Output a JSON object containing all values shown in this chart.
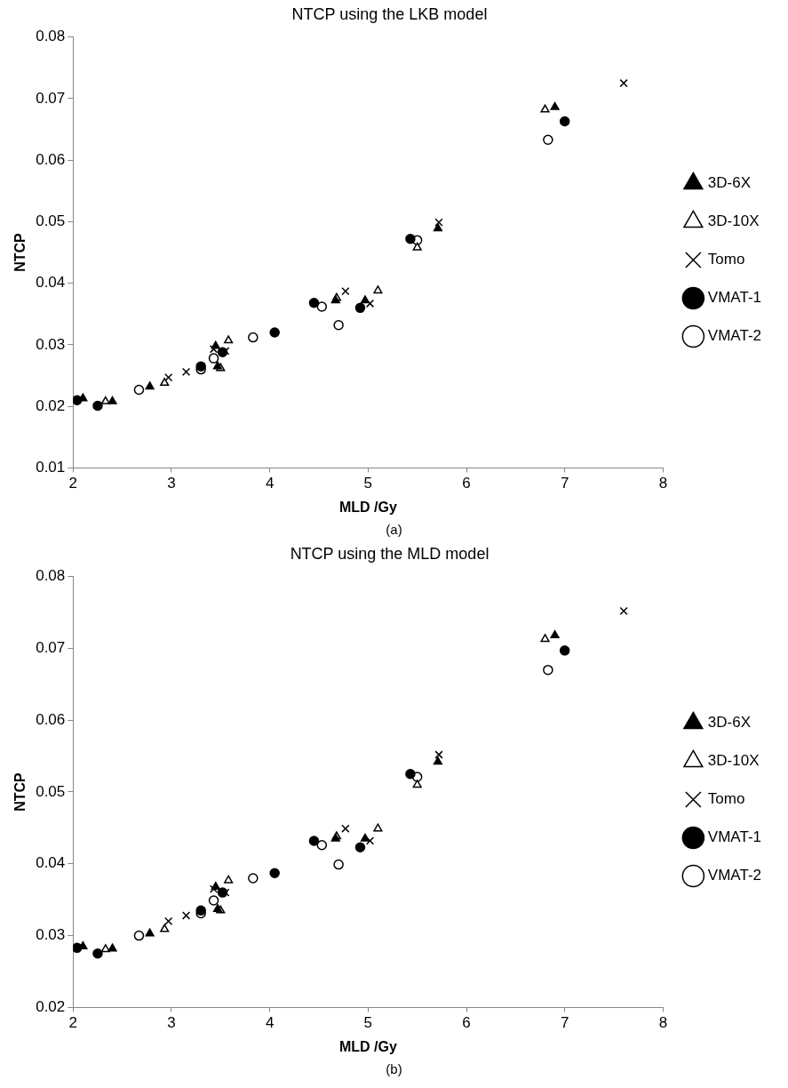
{
  "chart_data": [
    {
      "type": "scatter",
      "title": "NTCP using the LKB model",
      "xlabel": "MLD /Gy",
      "ylabel": "NTCP",
      "annotations": [
        "(a)"
      ],
      "xlim": [
        2,
        8
      ],
      "xticks": [
        2,
        3,
        4,
        5,
        6,
        7,
        8
      ],
      "ylim": [
        0.01,
        0.08
      ],
      "yticks": [
        0.01,
        0.02,
        0.03,
        0.04,
        0.05,
        0.06,
        0.07,
        0.08
      ],
      "grid": false,
      "legend": "right",
      "series": [
        {
          "name": "3D-6X",
          "marker": "triangle",
          "color": "#000000",
          "x": [
            2.1,
            2.4,
            2.78,
            3.45,
            3.47,
            4.67,
            4.97,
            5.71,
            6.9
          ],
          "values": [
            0.0213,
            0.0208,
            0.0232,
            0.0298,
            0.0265,
            0.0372,
            0.0372,
            0.0489,
            0.0686
          ]
        },
        {
          "name": "3D-10X",
          "marker": "triangle",
          "color": "#ffffff",
          "x": [
            2.33,
            2.93,
            3.5,
            3.58,
            4.68,
            5.1,
            5.5,
            6.8
          ],
          "values": [
            0.0208,
            0.0238,
            0.0262,
            0.0307,
            0.0376,
            0.0388,
            0.0458,
            0.0682
          ]
        },
        {
          "name": "Tomo",
          "marker": "cross",
          "color": "#000000",
          "x": [
            2.97,
            3.15,
            3.43,
            3.55,
            4.77,
            5.02,
            5.72,
            7.6
          ],
          "values": [
            0.0247,
            0.0256,
            0.0293,
            0.029,
            0.0387,
            0.0367,
            0.0499,
            0.0725
          ]
        },
        {
          "name": "VMAT-1",
          "marker": "circle",
          "color": "#000000",
          "x": [
            2.04,
            2.25,
            3.3,
            3.52,
            4.05,
            4.45,
            4.92,
            5.43,
            7.0
          ],
          "values": [
            0.021,
            0.0201,
            0.0265,
            0.0288,
            0.032,
            0.0368,
            0.036,
            0.0472,
            0.0663
          ]
        },
        {
          "name": "VMAT-2",
          "marker": "circle",
          "color": "#ffffff",
          "x": [
            2.67,
            3.3,
            3.43,
            3.83,
            4.53,
            4.7,
            5.5,
            6.83
          ],
          "values": [
            0.0227,
            0.026,
            0.0278,
            0.0312,
            0.0362,
            0.0332,
            0.047,
            0.0633
          ]
        }
      ]
    },
    {
      "type": "scatter",
      "title": "NTCP using the MLD model",
      "xlabel": "MLD /Gy",
      "ylabel": "NTCP",
      "annotations": [
        "(b)"
      ],
      "xlim": [
        2,
        8
      ],
      "xticks": [
        2,
        3,
        4,
        5,
        6,
        7,
        8
      ],
      "ylim": [
        0.02,
        0.08
      ],
      "yticks": [
        0.02,
        0.03,
        0.04,
        0.05,
        0.06,
        0.07,
        0.08
      ],
      "grid": false,
      "legend": "right",
      "series": [
        {
          "name": "3D-6X",
          "marker": "triangle",
          "color": "#000000",
          "x": [
            2.1,
            2.4,
            2.78,
            3.45,
            3.47,
            4.67,
            4.97,
            5.71,
            6.9
          ],
          "values": [
            0.0285,
            0.0282,
            0.0303,
            0.0368,
            0.0337,
            0.0435,
            0.0435,
            0.0542,
            0.0718
          ]
        },
        {
          "name": "3D-10X",
          "marker": "triangle",
          "color": "#ffffff",
          "x": [
            2.33,
            2.93,
            3.5,
            3.58,
            4.68,
            5.1,
            5.5,
            6.8
          ],
          "values": [
            0.0281,
            0.0309,
            0.0335,
            0.0377,
            0.0438,
            0.0449,
            0.051,
            0.0713
          ]
        },
        {
          "name": "Tomo",
          "marker": "cross",
          "color": "#000000",
          "x": [
            2.97,
            3.15,
            3.43,
            3.55,
            4.77,
            5.02,
            5.72,
            7.6
          ],
          "values": [
            0.032,
            0.0328,
            0.0365,
            0.036,
            0.0449,
            0.0432,
            0.0552,
            0.0752
          ]
        },
        {
          "name": "VMAT-1",
          "marker": "circle",
          "color": "#000000",
          "x": [
            2.04,
            2.25,
            3.3,
            3.52,
            4.05,
            4.45,
            4.92,
            5.43,
            7.0
          ],
          "values": [
            0.0283,
            0.0275,
            0.0335,
            0.036,
            0.0387,
            0.0432,
            0.0423,
            0.0525,
            0.0697
          ]
        },
        {
          "name": "VMAT-2",
          "marker": "circle",
          "color": "#ffffff",
          "x": [
            2.67,
            3.3,
            3.43,
            3.83,
            4.53,
            4.7,
            5.5,
            6.83
          ],
          "values": [
            0.03,
            0.0331,
            0.0349,
            0.038,
            0.0426,
            0.0399,
            0.0521,
            0.067
          ]
        }
      ]
    }
  ]
}
